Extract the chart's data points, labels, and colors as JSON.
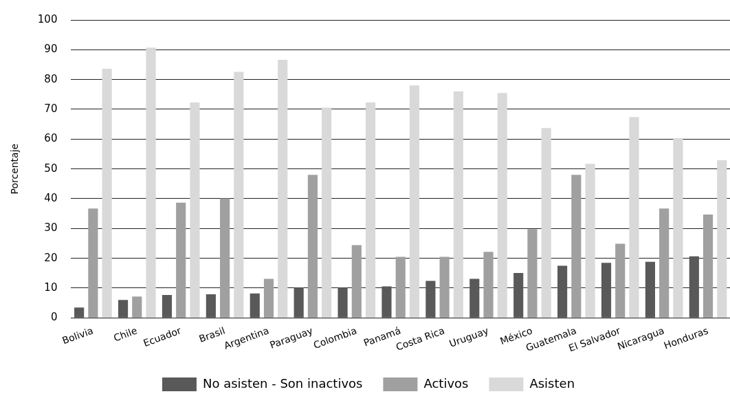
{
  "chart_data": {
    "type": "bar",
    "ylabel": "Porcentaje",
    "categories": [
      "Bolivia",
      "Chile",
      "Ecuador",
      "Brasil",
      "Argentina",
      "Paraguay",
      "Colombia",
      "Panamá",
      "Costa Rica",
      "Uruguay",
      "México",
      "Guatemala",
      "El Salvador",
      "Nicaragua",
      "Honduras"
    ],
    "series": [
      {
        "name": "No asisten - Son inactivos",
        "color": "#595959",
        "values": [
          3.5,
          6,
          7.7,
          7.9,
          8.2,
          10.2,
          10.2,
          10.6,
          12.4,
          13.1,
          15.1,
          17.5,
          18.5,
          18.8,
          20.7
        ]
      },
      {
        "name": "Activos",
        "color": "#a0a0a0",
        "values": [
          36.7,
          7.2,
          38.7,
          40.1,
          13.1,
          48,
          24.4,
          20.5,
          20.5,
          22.2,
          29.8,
          48,
          24.9,
          36.7,
          34.7
        ]
      },
      {
        "name": "Asisten",
        "color": "#d9d9d9",
        "values": [
          83.6,
          90.7,
          72.3,
          82.6,
          86.6,
          70.6,
          72.3,
          78,
          76,
          75.5,
          63.7,
          51.7,
          67.4,
          60.3,
          52.9
        ]
      }
    ],
    "ylim": [
      0,
      100
    ],
    "yticks": [
      0,
      10,
      20,
      30,
      40,
      50,
      60,
      70,
      80,
      90,
      100
    ],
    "grid": "y",
    "legend": "bottom"
  }
}
